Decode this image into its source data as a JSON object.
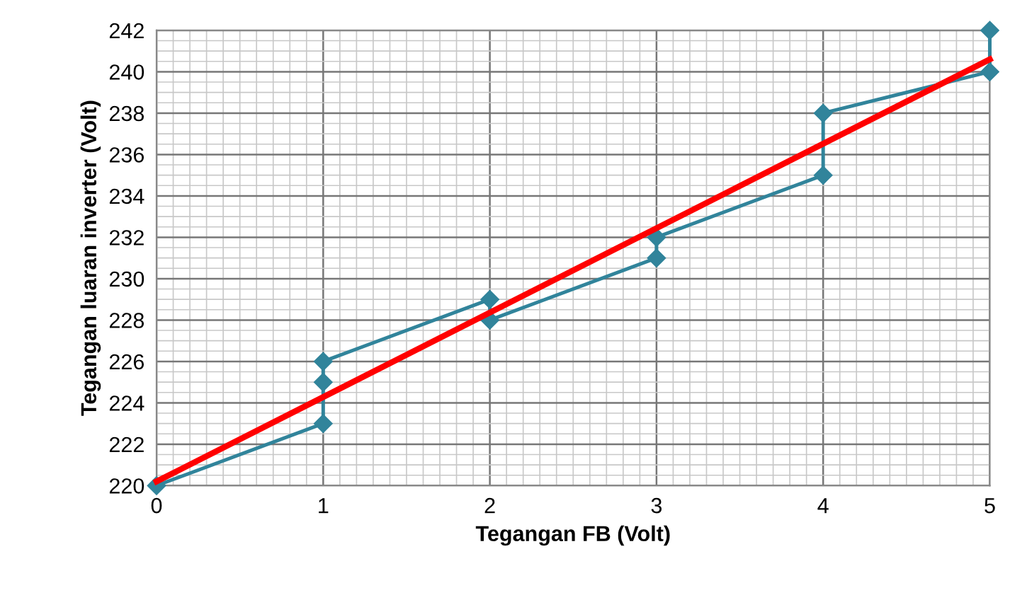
{
  "chart_data": {
    "type": "line",
    "xlabel": "Tegangan FB (Volt)",
    "ylabel": "Tegangan luaran inverter (Volt)",
    "xlim": [
      0,
      5
    ],
    "ylim": [
      220,
      242
    ],
    "xticks": [
      0,
      1,
      2,
      3,
      4,
      5
    ],
    "yticks": [
      220,
      222,
      224,
      226,
      228,
      230,
      232,
      234,
      236,
      238,
      240,
      242
    ],
    "grid": true,
    "marker": "diamond",
    "line_style": "solid",
    "series": [
      {
        "color": "#31849b",
        "x": [
          0,
          1,
          1,
          1,
          2,
          2,
          3,
          3,
          4,
          4,
          5,
          5
        ],
        "values": [
          220,
          223,
          225,
          226,
          229,
          228,
          231,
          232,
          235,
          238,
          240,
          242
        ]
      },
      {
        "color": "#ff0000",
        "marker": "none",
        "x": [
          0,
          5
        ],
        "values": [
          220.2,
          240.6
        ]
      }
    ]
  }
}
